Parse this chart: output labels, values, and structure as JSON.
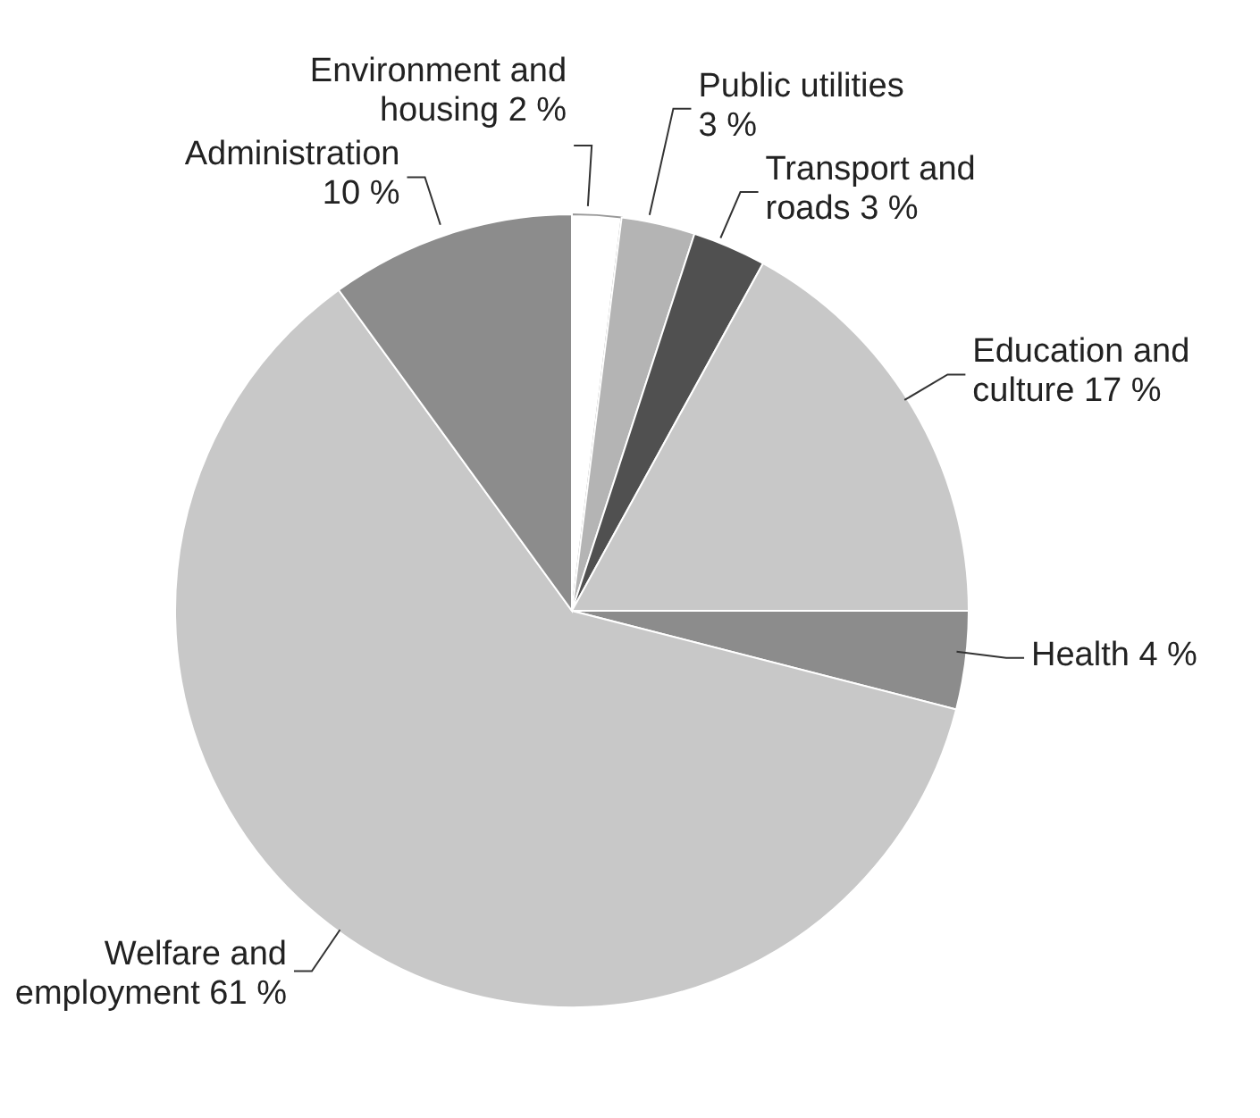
{
  "chart_data": {
    "type": "pie",
    "categories": [
      "Environment and housing",
      "Public utilities",
      "Transport and roads",
      "Education and culture",
      "Health",
      "Welfare and employment",
      "Administration"
    ],
    "values": [
      2,
      3,
      3,
      17,
      4,
      61,
      10
    ],
    "value_labels": [
      "2 %",
      "3 %",
      "3 %",
      "17 %",
      "4 %",
      "61 %",
      "10 %"
    ],
    "colors": [
      "#ffffff",
      "#b4b4b4",
      "#505050",
      "#c8c8c8",
      "#8c8c8c",
      "#c8c8c8",
      "#8c8c8c"
    ],
    "legend": false
  }
}
